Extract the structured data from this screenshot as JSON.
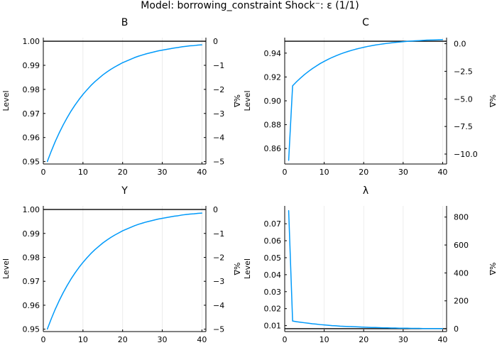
{
  "figure": {
    "suptitle": "Model: borrowing_constraint        Shock⁻: ε  (1/1)",
    "colors": {
      "series": "#009AFA",
      "axis": "#000000",
      "grid": "#E8E8E8",
      "background": "#FFFFFF"
    }
  },
  "chart_data": [
    {
      "type": "line",
      "title": "B",
      "ylabel": "Level",
      "ylabel_right": "%Δ",
      "xlim": [
        0,
        41
      ],
      "ylim": [
        0.949,
        1.0015
      ],
      "ylim_right": [
        -5.1,
        0.15
      ],
      "grid": true,
      "x_ticks": [
        "0",
        "10",
        "20",
        "30",
        "40"
      ],
      "y_ticks": [
        "1.00",
        "0.99",
        "0.98",
        "0.97",
        "0.96",
        "0.95"
      ],
      "y_ticks_right": [
        "0",
        "−1",
        "−2",
        "−3",
        "−4",
        "−5"
      ],
      "steady_state": 1.0,
      "series": [
        {
          "name": "",
          "x": [
            1,
            2,
            3,
            4,
            5,
            6,
            7,
            8,
            9,
            10,
            11,
            12,
            13,
            14,
            15,
            16,
            17,
            18,
            19,
            20,
            21,
            22,
            23,
            24,
            25,
            26,
            27,
            28,
            29,
            30,
            31,
            32,
            33,
            34,
            35,
            36,
            37,
            38,
            39,
            40
          ],
          "values": [
            0.95,
            0.9543,
            0.9583,
            0.9619,
            0.9652,
            0.9682,
            0.971,
            0.9735,
            0.9758,
            0.9779,
            0.9798,
            0.9816,
            0.9832,
            0.9846,
            0.986,
            0.9872,
            0.9883,
            0.9893,
            0.9902,
            0.9911,
            0.9918,
            0.9925,
            0.9932,
            0.9938,
            0.9943,
            0.9948,
            0.9952,
            0.9956,
            0.996,
            0.9963,
            0.9966,
            0.9969,
            0.9972,
            0.9974,
            0.9977,
            0.9979,
            0.9981,
            0.9982,
            0.9984,
            0.9985
          ]
        }
      ]
    },
    {
      "type": "line",
      "title": "C",
      "ylabel": "Level",
      "ylabel_right": "%Δ",
      "xlim": [
        0,
        41
      ],
      "ylim": [
        0.847,
        0.953
      ],
      "ylim_right": [
        -10.9,
        0.55
      ],
      "grid": true,
      "x_ticks": [
        "0",
        "10",
        "20",
        "30",
        "40"
      ],
      "y_ticks": [
        "0.94",
        "0.92",
        "0.90",
        "0.88",
        "0.86"
      ],
      "y_ticks_right": [
        "0.0",
        "−2.5",
        "−5.0",
        "−7.5",
        "−10.0"
      ],
      "steady_state": 0.95,
      "series": [
        {
          "name": "",
          "x": [
            1,
            2,
            3,
            4,
            5,
            6,
            7,
            8,
            9,
            10,
            11,
            12,
            13,
            14,
            15,
            16,
            17,
            18,
            19,
            20,
            21,
            22,
            23,
            24,
            25,
            26,
            27,
            28,
            29,
            30,
            31,
            32,
            33,
            34,
            35,
            36,
            37,
            38,
            39,
            40
          ],
          "values": [
            0.85,
            0.9126,
            0.916,
            0.9191,
            0.922,
            0.9246,
            0.927,
            0.9292,
            0.9313,
            0.9331,
            0.9348,
            0.9364,
            0.9378,
            0.9391,
            0.9403,
            0.9414,
            0.9424,
            0.9433,
            0.9441,
            0.9449,
            0.9456,
            0.9462,
            0.9468,
            0.9473,
            0.9478,
            0.9482,
            0.9486,
            0.949,
            0.9493,
            0.9496,
            0.9499,
            0.9501,
            0.9503,
            0.9505,
            0.9507,
            0.9509,
            0.951,
            0.9511,
            0.9512,
            0.9513
          ]
        }
      ]
    },
    {
      "type": "line",
      "title": "Y",
      "ylabel": "Level",
      "ylabel_right": "%Δ",
      "xlim": [
        0,
        41
      ],
      "ylim": [
        0.949,
        1.0015
      ],
      "ylim_right": [
        -5.1,
        0.15
      ],
      "grid": true,
      "x_ticks": [
        "0",
        "10",
        "20",
        "30",
        "40"
      ],
      "y_ticks": [
        "1.00",
        "0.99",
        "0.98",
        "0.97",
        "0.96",
        "0.95"
      ],
      "y_ticks_right": [
        "0",
        "−1",
        "−2",
        "−3",
        "−4",
        "−5"
      ],
      "steady_state": 1.0,
      "series": [
        {
          "name": "",
          "x": [
            1,
            2,
            3,
            4,
            5,
            6,
            7,
            8,
            9,
            10,
            11,
            12,
            13,
            14,
            15,
            16,
            17,
            18,
            19,
            20,
            21,
            22,
            23,
            24,
            25,
            26,
            27,
            28,
            29,
            30,
            31,
            32,
            33,
            34,
            35,
            36,
            37,
            38,
            39,
            40
          ],
          "values": [
            0.95,
            0.9543,
            0.9583,
            0.9619,
            0.9652,
            0.9682,
            0.971,
            0.9735,
            0.9758,
            0.9779,
            0.9798,
            0.9816,
            0.9832,
            0.9846,
            0.986,
            0.9872,
            0.9883,
            0.9893,
            0.9902,
            0.9911,
            0.9918,
            0.9925,
            0.9932,
            0.9938,
            0.9943,
            0.9948,
            0.9952,
            0.9956,
            0.996,
            0.9963,
            0.9966,
            0.9969,
            0.9972,
            0.9974,
            0.9977,
            0.9979,
            0.9981,
            0.9982,
            0.9984,
            0.9985
          ]
        }
      ]
    },
    {
      "type": "line",
      "title": "λ",
      "ylabel": "Level",
      "ylabel_right": "%Δ",
      "xlim": [
        0,
        41
      ],
      "ylim": [
        0.0065,
        0.0805
      ],
      "ylim_right": [
        -20,
        880
      ],
      "grid": true,
      "x_ticks": [
        "0",
        "10",
        "20",
        "30",
        "40"
      ],
      "y_ticks": [
        "0.07",
        "0.06",
        "0.05",
        "0.04",
        "0.03",
        "0.02",
        "0.01"
      ],
      "y_ticks_right": [
        "800",
        "600",
        "400",
        "200",
        "0"
      ],
      "steady_state": 0.0082,
      "series": [
        {
          "name": "",
          "x": [
            1,
            2,
            3,
            4,
            5,
            6,
            7,
            8,
            9,
            10,
            11,
            12,
            13,
            14,
            15,
            16,
            17,
            18,
            19,
            20,
            21,
            22,
            23,
            24,
            25,
            26,
            27,
            28,
            29,
            30,
            31,
            32,
            33,
            34,
            35,
            36,
            37,
            38,
            39,
            40
          ],
          "values": [
            0.0778,
            0.0127,
            0.0123,
            0.012,
            0.0117,
            0.0114,
            0.0111,
            0.0109,
            0.0106,
            0.0104,
            0.0102,
            0.01,
            0.0099,
            0.0097,
            0.0096,
            0.0095,
            0.0094,
            0.0093,
            0.0092,
            0.0091,
            0.009,
            0.0089,
            0.0089,
            0.0088,
            0.0087,
            0.0087,
            0.0086,
            0.0086,
            0.0085,
            0.0085,
            0.0085,
            0.0084,
            0.0084,
            0.0084,
            0.0083,
            0.0083,
            0.0083,
            0.0083,
            0.0083,
            0.0082
          ]
        }
      ]
    }
  ]
}
